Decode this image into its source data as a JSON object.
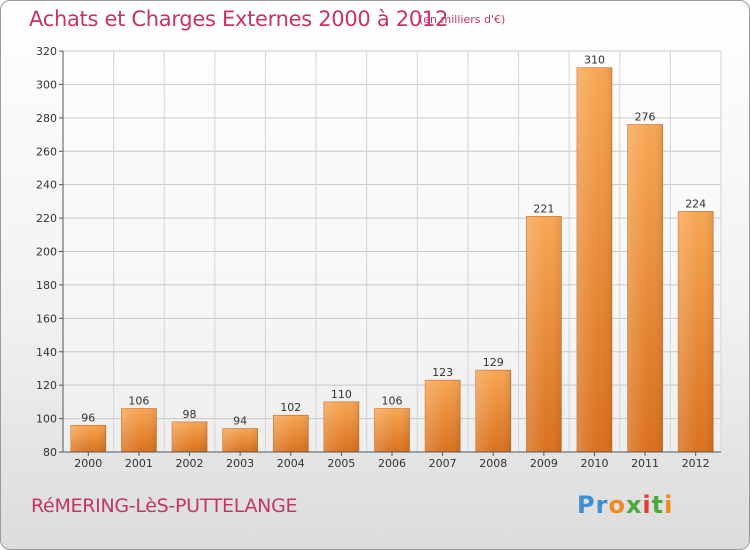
{
  "header": {
    "title": "Achats et Charges Externes 2000 à 2012",
    "subtitle": "(en milliers d'€)"
  },
  "footer": {
    "location": "RéMERING-LèS-PUTTELANGE",
    "logo_text": "Proxiti",
    "logo_colors": [
      "#3d8fd1",
      "#3d8fd1",
      "#f08a1c",
      "#4aaa3c",
      "#e03c31",
      "#4aaa3c",
      "#f08a1c"
    ]
  },
  "chart_data": {
    "type": "bar",
    "categories": [
      "2000",
      "2001",
      "2002",
      "2003",
      "2004",
      "2005",
      "2006",
      "2007",
      "2008",
      "2009",
      "2010",
      "2011",
      "2012"
    ],
    "values": [
      96,
      106,
      98,
      94,
      102,
      110,
      106,
      123,
      129,
      221,
      310,
      276,
      224
    ],
    "ylim": [
      80,
      320
    ],
    "yticks": [
      80,
      100,
      120,
      140,
      160,
      180,
      200,
      220,
      240,
      260,
      280,
      300,
      320
    ],
    "grid": true,
    "bar_color": "#f0943c"
  }
}
